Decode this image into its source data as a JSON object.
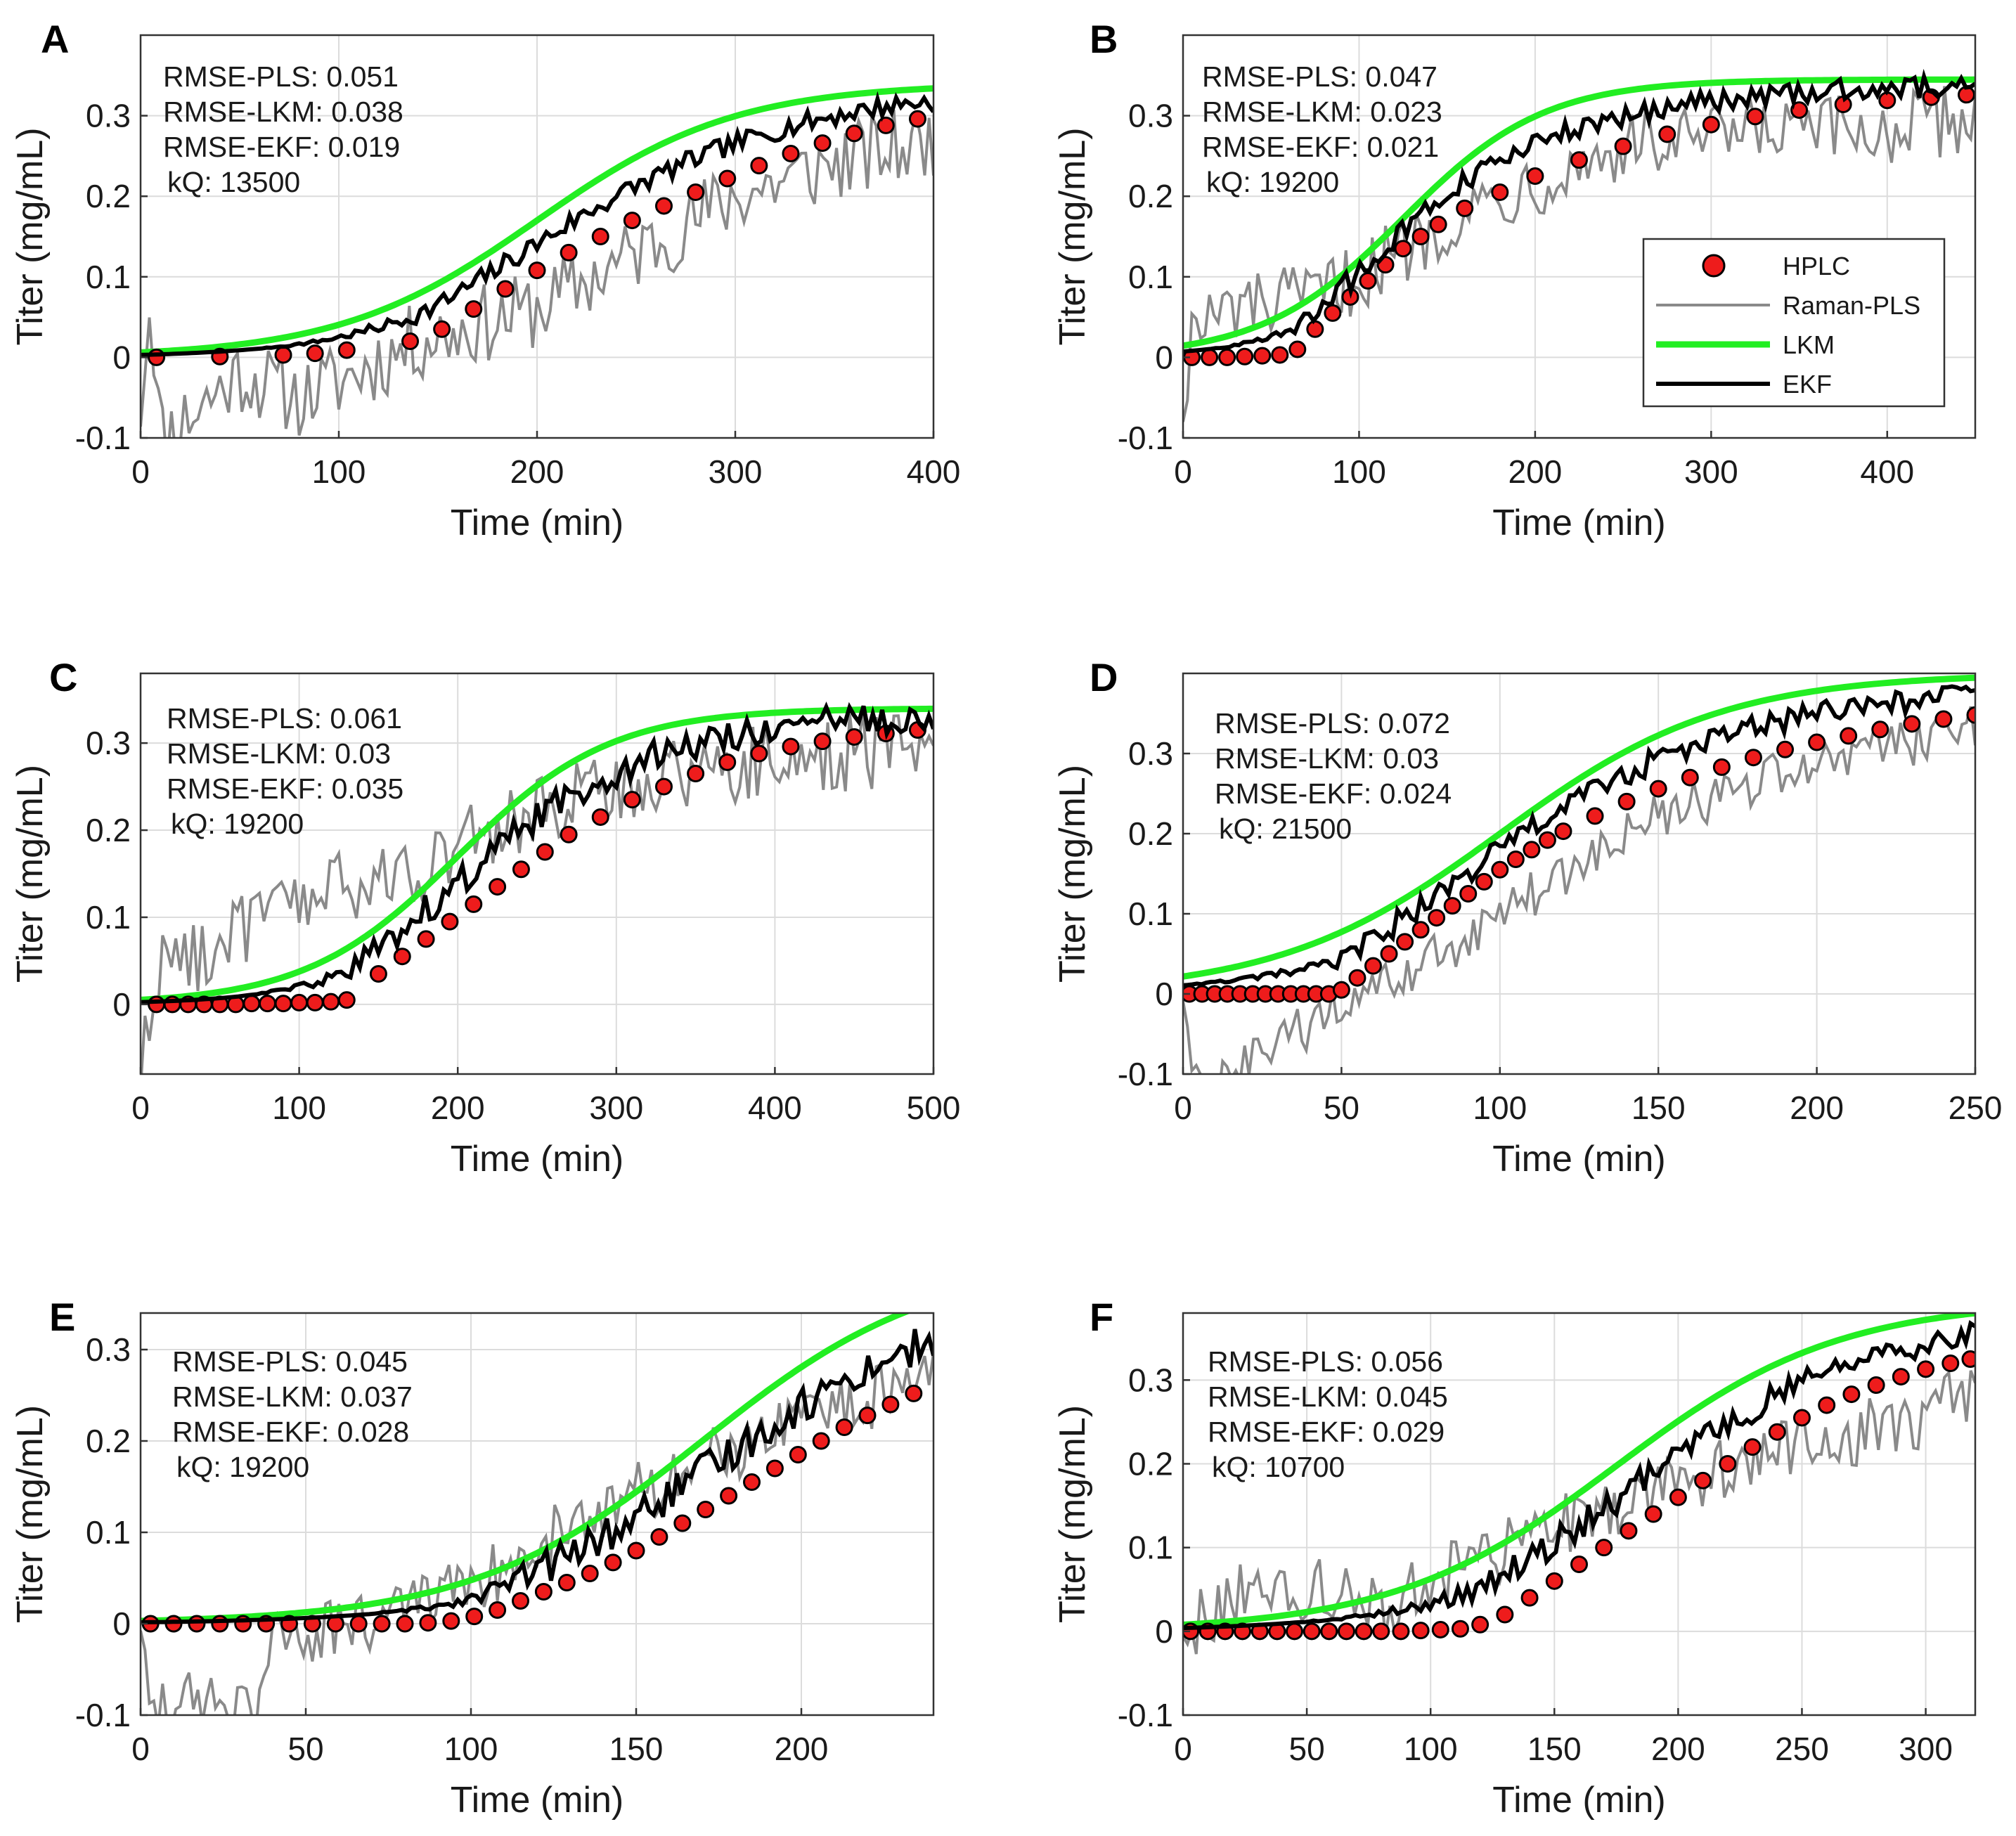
{
  "colors": {
    "hplc_fill": "#ee1c1c",
    "hplc_edge": "#000000",
    "raman_pls": "#8a8a8a",
    "lkm": "#22ee22",
    "ekf": "#000000",
    "grid": "#dcdcdc"
  },
  "chart_data": [
    {
      "type": "line",
      "panel": "A",
      "xlabel": "Time (min)",
      "ylabel": "Titer (mg/mL)",
      "xlim": [
        0,
        400
      ],
      "ylim": [
        -0.1,
        0.4
      ],
      "xticks": [
        0,
        100,
        200,
        300,
        400
      ],
      "xtick_labels": [
        "0",
        "100",
        "200",
        "300",
        "400"
      ],
      "yticks": [
        -0.1,
        0,
        0.1,
        0.2,
        0.3
      ],
      "ytick_labels": [
        "-0.1",
        "0",
        "0.1",
        "0.2",
        "0.3"
      ],
      "grid": true,
      "annotations": [
        "RMSE-PLS: 0.051",
        "RMSE-LKM: 0.038",
        "RMSE-EKF: 0.019",
        "kQ: 13500"
      ],
      "legend": null,
      "lkm": {
        "ymax": 0.34,
        "mid": 200,
        "scale": 50
      },
      "hplc": {
        "x": [
          8,
          40,
          72,
          88,
          104,
          136,
          152,
          168,
          184,
          200,
          216,
          232,
          248,
          264,
          280,
          296,
          312,
          328,
          344,
          360,
          376,
          392
        ],
        "y": [
          0.0,
          0.001,
          0.003,
          0.005,
          0.009,
          0.02,
          0.035,
          0.06,
          0.085,
          0.108,
          0.13,
          0.15,
          0.17,
          0.188,
          0.205,
          0.222,
          0.238,
          0.253,
          0.266,
          0.278,
          0.288,
          0.296
        ]
      },
      "pls_noise": 0.05,
      "ekf_noise": 0.013,
      "pls_anchors": [
        [
          0,
          -0.06
        ],
        [
          5,
          0.08
        ],
        [
          10,
          -0.1
        ],
        [
          50,
          -0.02
        ],
        [
          80,
          -0.05
        ],
        [
          100,
          -0.03
        ],
        [
          140,
          0.02
        ],
        [
          200,
          0.06
        ],
        [
          250,
          0.13
        ],
        [
          300,
          0.2
        ],
        [
          350,
          0.24
        ],
        [
          400,
          0.27
        ]
      ]
    },
    {
      "type": "line",
      "panel": "B",
      "xlabel": "Time (min)",
      "ylabel": "Titer (mg/mL)",
      "xlim": [
        0,
        450
      ],
      "ylim": [
        -0.1,
        0.4
      ],
      "xticks": [
        0,
        100,
        200,
        300,
        400
      ],
      "xtick_labels": [
        "0",
        "100",
        "200",
        "300",
        "400"
      ],
      "yticks": [
        -0.1,
        0,
        0.1,
        0.2,
        0.3
      ],
      "ytick_labels": [
        "-0.1",
        "0",
        "0.1",
        "0.2",
        "0.3"
      ],
      "grid": true,
      "annotations": [
        "RMSE-PLS: 0.047",
        "RMSE-LKM: 0.023",
        "RMSE-EKF: 0.021",
        "kQ: 19200"
      ],
      "legend": {
        "entries": [
          "HPLC",
          "Raman-PLS",
          "LKM",
          "EKF"
        ],
        "placement": "right"
      },
      "lkm": {
        "ymax": 0.345,
        "mid": 125,
        "scale": 40
      },
      "hplc": {
        "x": [
          5,
          15,
          25,
          35,
          45,
          55,
          65,
          75,
          85,
          95,
          105,
          115,
          125,
          135,
          145,
          160,
          180,
          200,
          225,
          250,
          275,
          300,
          325,
          350,
          375,
          400,
          425,
          445
        ],
        "y": [
          0.0,
          0.0,
          0.0,
          0.001,
          0.002,
          0.003,
          0.01,
          0.035,
          0.055,
          0.075,
          0.095,
          0.115,
          0.135,
          0.15,
          0.165,
          0.185,
          0.205,
          0.225,
          0.245,
          0.262,
          0.277,
          0.289,
          0.299,
          0.307,
          0.314,
          0.319,
          0.323,
          0.326
        ]
      },
      "pls_noise": 0.045,
      "ekf_noise": 0.014,
      "pls_anchors": [
        [
          0,
          -0.06
        ],
        [
          5,
          0.03
        ],
        [
          30,
          0.06
        ],
        [
          70,
          0.07
        ],
        [
          100,
          0.1
        ],
        [
          150,
          0.17
        ],
        [
          200,
          0.22
        ],
        [
          250,
          0.26
        ],
        [
          300,
          0.27
        ],
        [
          350,
          0.28
        ],
        [
          400,
          0.28
        ],
        [
          450,
          0.3
        ]
      ]
    },
    {
      "type": "line",
      "panel": "C",
      "xlabel": "Time (min)",
      "ylabel": "Titer (mg/mL)",
      "xlim": [
        0,
        500
      ],
      "ylim": [
        -0.08,
        0.38
      ],
      "xticks": [
        0,
        100,
        200,
        300,
        400,
        500
      ],
      "xtick_labels": [
        "0",
        "100",
        "200",
        "300",
        "400",
        "500"
      ],
      "yticks": [
        0,
        0.1,
        0.2,
        0.3
      ],
      "ytick_labels": [
        "0",
        "0.1",
        "0.2",
        "0.3"
      ],
      "grid": true,
      "annotations": [
        "RMSE-PLS: 0.061",
        "RMSE-LKM: 0.03",
        "RMSE-EKF: 0.035",
        "kQ: 19200"
      ],
      "legend": null,
      "lkm": {
        "ymax": 0.34,
        "mid": 200,
        "scale": 48
      },
      "hplc": {
        "x": [
          10,
          20,
          30,
          40,
          50,
          60,
          70,
          80,
          90,
          100,
          110,
          120,
          130,
          150,
          165,
          180,
          195,
          210,
          225,
          240,
          255,
          270,
          290,
          310,
          330,
          350,
          370,
          390,
          410,
          430,
          450,
          470,
          490
        ],
        "y": [
          0.0,
          0.0,
          0.0,
          0.0,
          0.0,
          0.0,
          0.001,
          0.001,
          0.001,
          0.002,
          0.002,
          0.003,
          0.005,
          0.035,
          0.055,
          0.075,
          0.095,
          0.115,
          0.135,
          0.155,
          0.175,
          0.195,
          0.215,
          0.235,
          0.25,
          0.265,
          0.278,
          0.288,
          0.296,
          0.302,
          0.307,
          0.311,
          0.315
        ]
      },
      "pls_noise": 0.045,
      "ekf_noise": 0.018,
      "pls_anchors": [
        [
          0,
          -0.08
        ],
        [
          10,
          0.04
        ],
        [
          50,
          0.07
        ],
        [
          100,
          0.12
        ],
        [
          150,
          0.14
        ],
        [
          200,
          0.18
        ],
        [
          250,
          0.22
        ],
        [
          300,
          0.25
        ],
        [
          350,
          0.27
        ],
        [
          400,
          0.28
        ],
        [
          450,
          0.29
        ],
        [
          500,
          0.3
        ]
      ]
    },
    {
      "type": "line",
      "panel": "D",
      "xlabel": "Time (min)",
      "ylabel": "Titer (mg/mL)",
      "xlim": [
        0,
        250
      ],
      "ylim": [
        -0.1,
        0.4
      ],
      "xticks": [
        0,
        50,
        100,
        150,
        200,
        250
      ],
      "xtick_labels": [
        "0",
        "50",
        "100",
        "150",
        "200",
        "250"
      ],
      "yticks": [
        -0.1,
        0,
        0.1,
        0.2,
        0.3
      ],
      "ytick_labels": [
        "-0.1",
        "0",
        "0.1",
        "0.2",
        "0.3"
      ],
      "grid": true,
      "annotations": [
        "RMSE-PLS: 0.072",
        "RMSE-LKM: 0.03",
        "RMSE-EKF: 0.024",
        "kQ: 21500"
      ],
      "legend": null,
      "lkm": {
        "ymax": 0.4,
        "mid": 100,
        "scale": 35
      },
      "hplc": {
        "x": [
          2,
          6,
          10,
          14,
          18,
          22,
          26,
          30,
          34,
          38,
          42,
          46,
          50,
          55,
          60,
          65,
          70,
          75,
          80,
          85,
          90,
          95,
          100,
          105,
          110,
          115,
          120,
          130,
          140,
          150,
          160,
          170,
          180,
          190,
          200,
          210,
          220,
          230,
          240,
          250
        ],
        "y": [
          0.0,
          0.0,
          0.0,
          0.0,
          0.0,
          0.0,
          0.0,
          0.0,
          0.0,
          0.0,
          0.0,
          0.0,
          0.005,
          0.02,
          0.035,
          0.05,
          0.065,
          0.08,
          0.095,
          0.11,
          0.125,
          0.14,
          0.155,
          0.168,
          0.18,
          0.192,
          0.203,
          0.222,
          0.24,
          0.256,
          0.27,
          0.283,
          0.295,
          0.305,
          0.314,
          0.322,
          0.33,
          0.337,
          0.343,
          0.348
        ]
      },
      "pls_noise": 0.03,
      "ekf_noise": 0.016,
      "pls_anchors": [
        [
          0,
          0.0
        ],
        [
          3,
          -0.11
        ],
        [
          15,
          -0.11
        ],
        [
          20,
          -0.09
        ],
        [
          35,
          -0.05
        ],
        [
          50,
          -0.02
        ],
        [
          70,
          0.02
        ],
        [
          100,
          0.1
        ],
        [
          150,
          0.22
        ],
        [
          200,
          0.29
        ],
        [
          250,
          0.33
        ]
      ]
    },
    {
      "type": "line",
      "panel": "E",
      "xlabel": "Time (min)",
      "ylabel": "Titer (mg/mL)",
      "xlim": [
        0,
        240
      ],
      "ylim": [
        -0.1,
        0.34
      ],
      "xticks": [
        0,
        50,
        100,
        150,
        200
      ],
      "xtick_labels": [
        "0",
        "50",
        "100",
        "150",
        "200"
      ],
      "yticks": [
        -0.1,
        0,
        0.1,
        0.2,
        0.3
      ],
      "ytick_labels": [
        "-0.1",
        "0",
        "0.1",
        "0.2",
        "0.3"
      ],
      "grid": true,
      "annotations": [
        "RMSE-PLS: 0.045",
        "RMSE-LKM: 0.037",
        "RMSE-EKF: 0.028",
        "kQ: 19200"
      ],
      "legend": null,
      "lkm": {
        "ymax": 0.4,
        "mid": 170,
        "scale": 35
      },
      "hplc": {
        "x": [
          3,
          10,
          17,
          24,
          31,
          38,
          45,
          52,
          59,
          66,
          73,
          80,
          87,
          94,
          101,
          108,
          115,
          122,
          129,
          136,
          143,
          150,
          157,
          164,
          171,
          178,
          185,
          192,
          199,
          206,
          213,
          220,
          227,
          234
        ],
        "y": [
          0.0,
          0.0,
          0.0,
          0.0,
          0.0,
          0.0,
          0.0,
          0.0,
          0.0,
          0.0,
          0.0,
          0.0,
          0.001,
          0.003,
          0.008,
          0.015,
          0.025,
          0.035,
          0.045,
          0.055,
          0.067,
          0.08,
          0.095,
          0.11,
          0.125,
          0.14,
          0.155,
          0.17,
          0.185,
          0.2,
          0.215,
          0.228,
          0.24,
          0.252
        ]
      },
      "pls_noise": 0.035,
      "ekf_noise": 0.02,
      "pls_anchors": [
        [
          0,
          0.0
        ],
        [
          5,
          -0.1
        ],
        [
          20,
          -0.08
        ],
        [
          35,
          -0.1
        ],
        [
          40,
          -0.02
        ],
        [
          60,
          0.0
        ],
        [
          80,
          0.01
        ],
        [
          100,
          0.04
        ],
        [
          130,
          0.11
        ],
        [
          160,
          0.16
        ],
        [
          200,
          0.22
        ],
        [
          240,
          0.27
        ]
      ]
    },
    {
      "type": "line",
      "panel": "F",
      "xlabel": "Time (min)",
      "ylabel": "Titer (mg/mL)",
      "xlim": [
        0,
        320
      ],
      "ylim": [
        -0.1,
        0.38
      ],
      "xticks": [
        0,
        50,
        100,
        150,
        200,
        250,
        300
      ],
      "xtick_labels": [
        "0",
        "50",
        "100",
        "150",
        "200",
        "250",
        "300"
      ],
      "yticks": [
        -0.1,
        0,
        0.1,
        0.2,
        0.3
      ],
      "ytick_labels": [
        "-0.1",
        "0",
        "0.1",
        "0.2",
        "0.3"
      ],
      "grid": true,
      "annotations": [
        "RMSE-PLS: 0.056",
        "RMSE-LKM: 0.045",
        "RMSE-EKF: 0.029",
        "kQ: 10700"
      ],
      "legend": null,
      "lkm": {
        "ymax": 0.395,
        "mid": 175,
        "scale": 45
      },
      "hplc": {
        "x": [
          3,
          10,
          17,
          24,
          31,
          38,
          45,
          52,
          59,
          66,
          73,
          80,
          88,
          96,
          104,
          112,
          120,
          130,
          140,
          150,
          160,
          170,
          180,
          190,
          200,
          210,
          220,
          230,
          240,
          250,
          260,
          270,
          280,
          290,
          300,
          310,
          318
        ],
        "y": [
          0.0,
          0.0,
          0.0,
          0.0,
          0.0,
          0.0,
          0.0,
          0.0,
          0.0,
          0.0,
          0.0,
          0.0,
          0.0,
          0.001,
          0.002,
          0.003,
          0.008,
          0.02,
          0.04,
          0.06,
          0.08,
          0.1,
          0.12,
          0.14,
          0.16,
          0.18,
          0.2,
          0.22,
          0.238,
          0.255,
          0.27,
          0.283,
          0.294,
          0.304,
          0.313,
          0.32,
          0.325
        ]
      },
      "pls_noise": 0.04,
      "ekf_noise": 0.018,
      "pls_anchors": [
        [
          0,
          0.0
        ],
        [
          20,
          0.04
        ],
        [
          60,
          0.05
        ],
        [
          80,
          0.03
        ],
        [
          100,
          0.06
        ],
        [
          150,
          0.12
        ],
        [
          200,
          0.18
        ],
        [
          250,
          0.22
        ],
        [
          300,
          0.26
        ],
        [
          320,
          0.29
        ]
      ]
    }
  ]
}
